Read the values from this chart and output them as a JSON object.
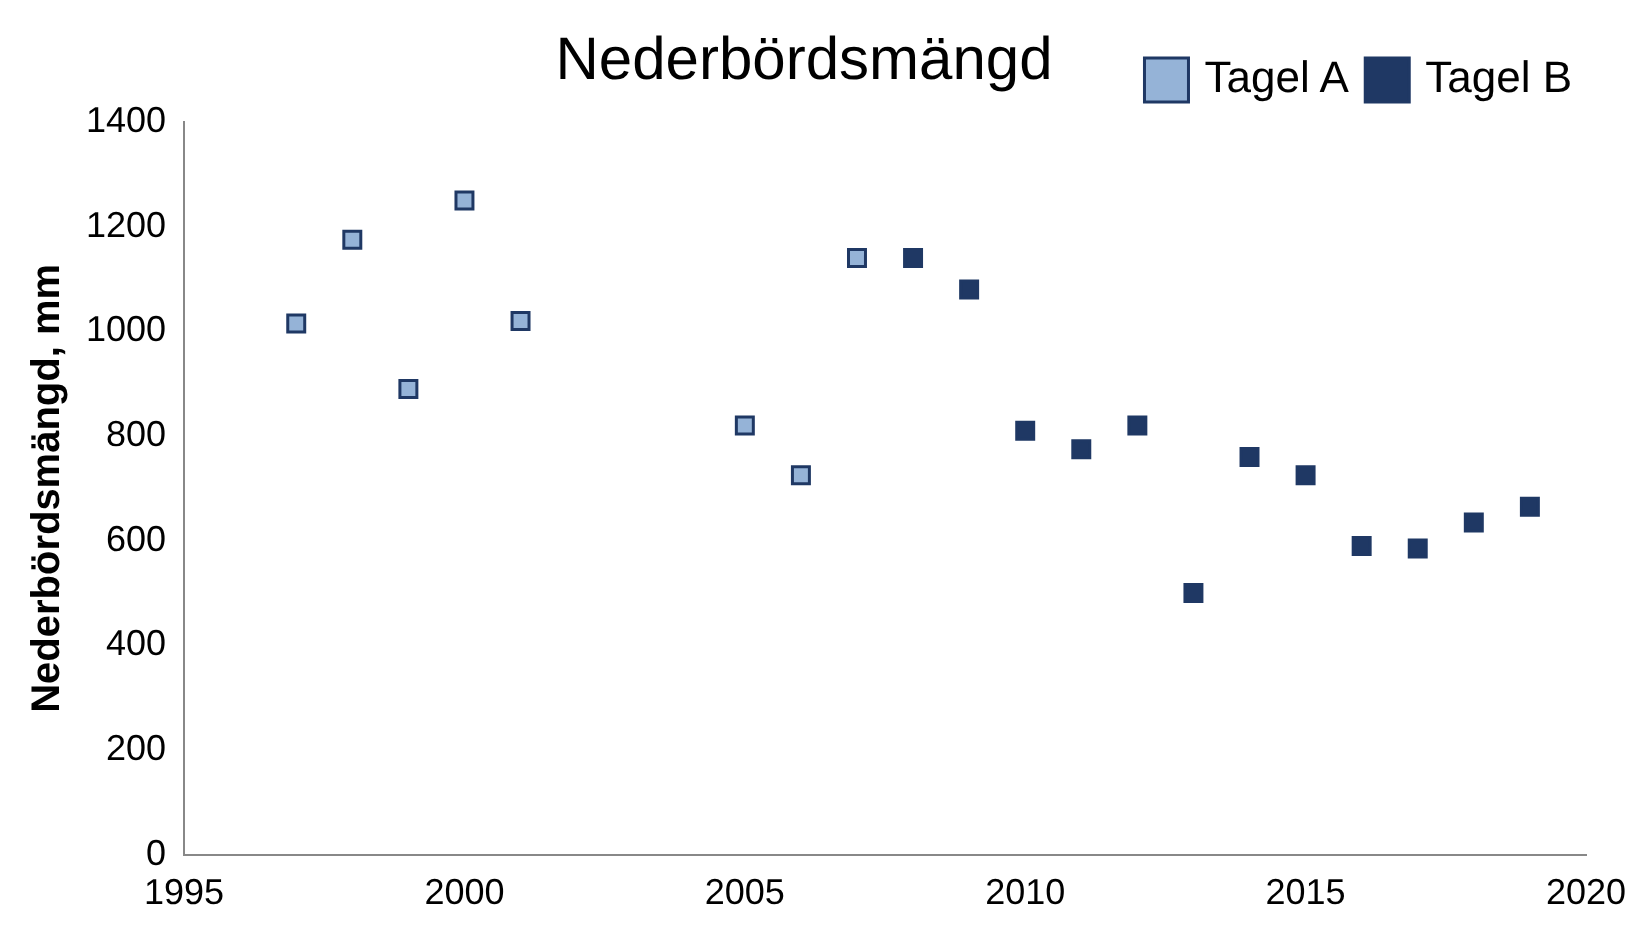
{
  "chart_data": {
    "type": "scatter",
    "title": "Nederbördsmängd",
    "ylabel": "Nederbördsmängd, mm",
    "series": [
      {
        "name": "Tagel A",
        "color": "#95b3d7",
        "x": [
          1997,
          1998,
          1999,
          2000,
          2001,
          2005,
          2006,
          2007
        ],
        "values": [
          1015,
          1175,
          890,
          1250,
          1020,
          820,
          725,
          1140
        ]
      },
      {
        "name": "Tagel B",
        "color": "#1f3864",
        "x": [
          2008,
          2009,
          2010,
          2011,
          2012,
          2013,
          2014,
          2015,
          2016,
          2017,
          2018,
          2019
        ],
        "values": [
          1140,
          1080,
          810,
          775,
          820,
          500,
          760,
          725,
          590,
          585,
          635,
          665
        ]
      }
    ],
    "xlim": [
      1995,
      2020
    ],
    "xticks": [
      1995,
      2000,
      2005,
      2010,
      2015,
      2020
    ],
    "ylim": [
      0,
      1400
    ],
    "yticks": [
      0,
      200,
      400,
      600,
      800,
      1000,
      1200,
      1400
    ],
    "grid": false,
    "legend": "top right",
    "marker": "square"
  }
}
